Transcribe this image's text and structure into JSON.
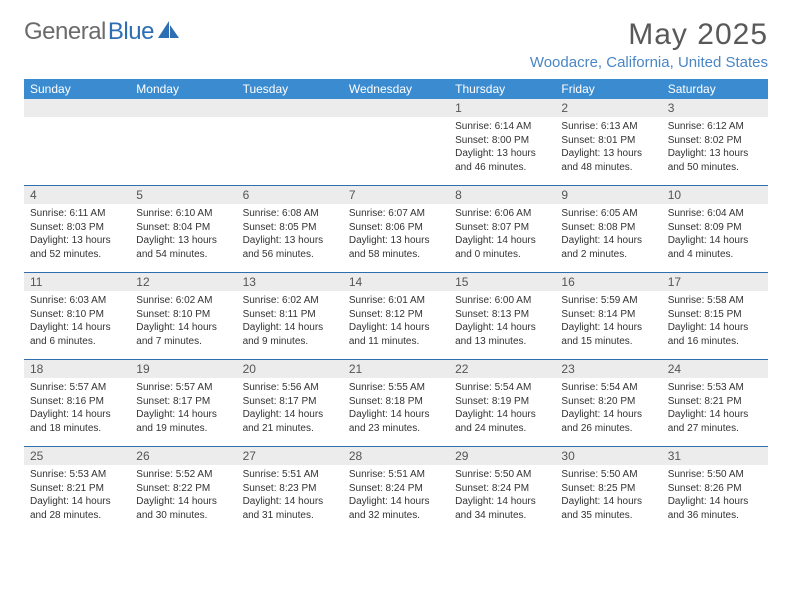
{
  "brand": {
    "part1": "General",
    "part2": "Blue"
  },
  "title": "May 2025",
  "location": "Woodacre, California, United States",
  "colors": {
    "header_bg": "#3b8bd0",
    "header_text": "#ffffff",
    "rule": "#2f6fae",
    "daynum_bg": "#ececec",
    "accent": "#4a86c5",
    "brand_gray": "#6b6b6b"
  },
  "dow": [
    "Sunday",
    "Monday",
    "Tuesday",
    "Wednesday",
    "Thursday",
    "Friday",
    "Saturday"
  ],
  "weeks": [
    [
      {
        "n": "",
        "sr": "",
        "ss": "",
        "dl": ""
      },
      {
        "n": "",
        "sr": "",
        "ss": "",
        "dl": ""
      },
      {
        "n": "",
        "sr": "",
        "ss": "",
        "dl": ""
      },
      {
        "n": "",
        "sr": "",
        "ss": "",
        "dl": ""
      },
      {
        "n": "1",
        "sr": "6:14 AM",
        "ss": "8:00 PM",
        "dl": "13 hours and 46 minutes."
      },
      {
        "n": "2",
        "sr": "6:13 AM",
        "ss": "8:01 PM",
        "dl": "13 hours and 48 minutes."
      },
      {
        "n": "3",
        "sr": "6:12 AM",
        "ss": "8:02 PM",
        "dl": "13 hours and 50 minutes."
      }
    ],
    [
      {
        "n": "4",
        "sr": "6:11 AM",
        "ss": "8:03 PM",
        "dl": "13 hours and 52 minutes."
      },
      {
        "n": "5",
        "sr": "6:10 AM",
        "ss": "8:04 PM",
        "dl": "13 hours and 54 minutes."
      },
      {
        "n": "6",
        "sr": "6:08 AM",
        "ss": "8:05 PM",
        "dl": "13 hours and 56 minutes."
      },
      {
        "n": "7",
        "sr": "6:07 AM",
        "ss": "8:06 PM",
        "dl": "13 hours and 58 minutes."
      },
      {
        "n": "8",
        "sr": "6:06 AM",
        "ss": "8:07 PM",
        "dl": "14 hours and 0 minutes."
      },
      {
        "n": "9",
        "sr": "6:05 AM",
        "ss": "8:08 PM",
        "dl": "14 hours and 2 minutes."
      },
      {
        "n": "10",
        "sr": "6:04 AM",
        "ss": "8:09 PM",
        "dl": "14 hours and 4 minutes."
      }
    ],
    [
      {
        "n": "11",
        "sr": "6:03 AM",
        "ss": "8:10 PM",
        "dl": "14 hours and 6 minutes."
      },
      {
        "n": "12",
        "sr": "6:02 AM",
        "ss": "8:10 PM",
        "dl": "14 hours and 7 minutes."
      },
      {
        "n": "13",
        "sr": "6:02 AM",
        "ss": "8:11 PM",
        "dl": "14 hours and 9 minutes."
      },
      {
        "n": "14",
        "sr": "6:01 AM",
        "ss": "8:12 PM",
        "dl": "14 hours and 11 minutes."
      },
      {
        "n": "15",
        "sr": "6:00 AM",
        "ss": "8:13 PM",
        "dl": "14 hours and 13 minutes."
      },
      {
        "n": "16",
        "sr": "5:59 AM",
        "ss": "8:14 PM",
        "dl": "14 hours and 15 minutes."
      },
      {
        "n": "17",
        "sr": "5:58 AM",
        "ss": "8:15 PM",
        "dl": "14 hours and 16 minutes."
      }
    ],
    [
      {
        "n": "18",
        "sr": "5:57 AM",
        "ss": "8:16 PM",
        "dl": "14 hours and 18 minutes."
      },
      {
        "n": "19",
        "sr": "5:57 AM",
        "ss": "8:17 PM",
        "dl": "14 hours and 19 minutes."
      },
      {
        "n": "20",
        "sr": "5:56 AM",
        "ss": "8:17 PM",
        "dl": "14 hours and 21 minutes."
      },
      {
        "n": "21",
        "sr": "5:55 AM",
        "ss": "8:18 PM",
        "dl": "14 hours and 23 minutes."
      },
      {
        "n": "22",
        "sr": "5:54 AM",
        "ss": "8:19 PM",
        "dl": "14 hours and 24 minutes."
      },
      {
        "n": "23",
        "sr": "5:54 AM",
        "ss": "8:20 PM",
        "dl": "14 hours and 26 minutes."
      },
      {
        "n": "24",
        "sr": "5:53 AM",
        "ss": "8:21 PM",
        "dl": "14 hours and 27 minutes."
      }
    ],
    [
      {
        "n": "25",
        "sr": "5:53 AM",
        "ss": "8:21 PM",
        "dl": "14 hours and 28 minutes."
      },
      {
        "n": "26",
        "sr": "5:52 AM",
        "ss": "8:22 PM",
        "dl": "14 hours and 30 minutes."
      },
      {
        "n": "27",
        "sr": "5:51 AM",
        "ss": "8:23 PM",
        "dl": "14 hours and 31 minutes."
      },
      {
        "n": "28",
        "sr": "5:51 AM",
        "ss": "8:24 PM",
        "dl": "14 hours and 32 minutes."
      },
      {
        "n": "29",
        "sr": "5:50 AM",
        "ss": "8:24 PM",
        "dl": "14 hours and 34 minutes."
      },
      {
        "n": "30",
        "sr": "5:50 AM",
        "ss": "8:25 PM",
        "dl": "14 hours and 35 minutes."
      },
      {
        "n": "31",
        "sr": "5:50 AM",
        "ss": "8:26 PM",
        "dl": "14 hours and 36 minutes."
      }
    ]
  ],
  "labels": {
    "sunrise": "Sunrise: ",
    "sunset": "Sunset: ",
    "daylight": "Daylight: "
  }
}
